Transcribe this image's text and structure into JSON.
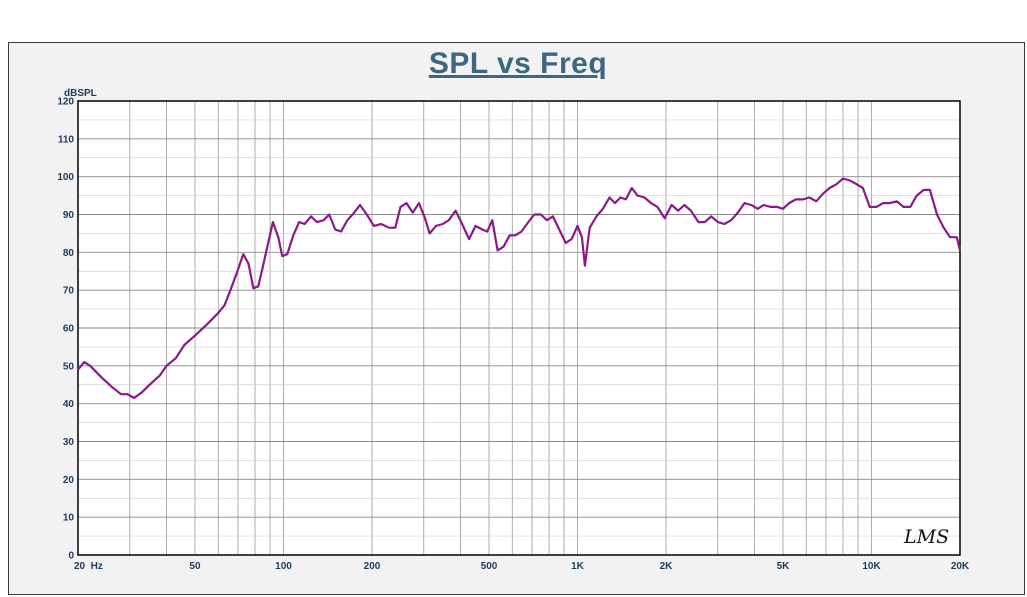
{
  "chart_data": {
    "type": "line",
    "title": "SPL vs Freq",
    "ylabel": "dBSPL",
    "xlabel": "",
    "x_scale": "log",
    "xlim": [
      20,
      20000
    ],
    "ylim": [
      0,
      120
    ],
    "grid": true,
    "y_ticks": [
      0,
      10,
      20,
      30,
      40,
      50,
      60,
      70,
      80,
      90,
      100,
      110,
      120
    ],
    "x_tick_labels": [
      {
        "value": 20,
        "label": "20  Hz"
      },
      {
        "value": 50,
        "label": "50"
      },
      {
        "value": 100,
        "label": "100"
      },
      {
        "value": 200,
        "label": "200"
      },
      {
        "value": 500,
        "label": "500"
      },
      {
        "value": 1000,
        "label": "1K"
      },
      {
        "value": 2000,
        "label": "2K"
      },
      {
        "value": 5000,
        "label": "5K"
      },
      {
        "value": 10000,
        "label": "10K"
      },
      {
        "value": 20000,
        "label": "20K"
      }
    ],
    "series": [
      {
        "color": "#8b1a89",
        "points": [
          [
            20,
            49
          ],
          [
            21,
            51
          ],
          [
            22,
            50
          ],
          [
            24,
            47
          ],
          [
            26,
            44.5
          ],
          [
            28,
            42.5
          ],
          [
            29.5,
            42.5
          ],
          [
            31,
            41.5
          ],
          [
            33,
            43
          ],
          [
            35,
            45
          ],
          [
            38,
            47.5
          ],
          [
            40,
            50
          ],
          [
            43,
            52
          ],
          [
            46,
            55.5
          ],
          [
            50,
            58
          ],
          [
            55,
            61
          ],
          [
            60,
            64
          ],
          [
            63,
            66
          ],
          [
            66,
            70
          ],
          [
            69,
            74
          ],
          [
            73,
            79.5
          ],
          [
            76,
            77
          ],
          [
            79,
            70.5
          ],
          [
            82,
            71
          ],
          [
            85,
            76
          ],
          [
            89,
            83
          ],
          [
            92,
            88
          ],
          [
            96,
            84
          ],
          [
            99,
            79
          ],
          [
            103,
            79.5
          ],
          [
            108,
            84.5
          ],
          [
            113,
            88
          ],
          [
            118,
            87.5
          ],
          [
            124,
            89.5
          ],
          [
            130,
            88
          ],
          [
            137,
            88.5
          ],
          [
            143,
            90
          ],
          [
            150,
            86
          ],
          [
            157,
            85.5
          ],
          [
            165,
            88.5
          ],
          [
            174,
            90.5
          ],
          [
            182,
            92.5
          ],
          [
            192,
            90
          ],
          [
            203,
            87
          ],
          [
            215,
            87.5
          ],
          [
            228,
            86.5
          ],
          [
            240,
            86.5
          ],
          [
            250,
            92
          ],
          [
            262,
            93
          ],
          [
            275,
            90.5
          ],
          [
            289,
            93
          ],
          [
            303,
            89
          ],
          [
            314,
            85
          ],
          [
            330,
            87
          ],
          [
            348,
            87.5
          ],
          [
            365,
            88.5
          ],
          [
            385,
            91
          ],
          [
            405,
            87.5
          ],
          [
            428,
            83.5
          ],
          [
            450,
            87
          ],
          [
            475,
            86
          ],
          [
            493,
            85.5
          ],
          [
            513,
            88.5
          ],
          [
            535,
            80.5
          ],
          [
            560,
            81.5
          ],
          [
            588,
            84.5
          ],
          [
            615,
            84.5
          ],
          [
            645,
            85.5
          ],
          [
            680,
            88
          ],
          [
            713,
            90
          ],
          [
            750,
            90
          ],
          [
            787,
            88.5
          ],
          [
            825,
            89.5
          ],
          [
            867,
            86
          ],
          [
            912,
            82.5
          ],
          [
            955,
            83.5
          ],
          [
            1000,
            87
          ],
          [
            1035,
            84
          ],
          [
            1060,
            76.5
          ],
          [
            1100,
            86.5
          ],
          [
            1160,
            89.5
          ],
          [
            1220,
            91.5
          ],
          [
            1285,
            94.5
          ],
          [
            1340,
            93
          ],
          [
            1400,
            94.5
          ],
          [
            1460,
            94
          ],
          [
            1530,
            97
          ],
          [
            1600,
            95
          ],
          [
            1690,
            94.5
          ],
          [
            1780,
            93
          ],
          [
            1870,
            92
          ],
          [
            1980,
            89
          ],
          [
            2090,
            92.5
          ],
          [
            2200,
            91
          ],
          [
            2310,
            92.5
          ],
          [
            2430,
            91
          ],
          [
            2580,
            88
          ],
          [
            2710,
            88
          ],
          [
            2850,
            89.5
          ],
          [
            3000,
            88
          ],
          [
            3160,
            87.5
          ],
          [
            3330,
            88.5
          ],
          [
            3510,
            90.5
          ],
          [
            3700,
            93
          ],
          [
            3900,
            92.5
          ],
          [
            4100,
            91.5
          ],
          [
            4300,
            92.5
          ],
          [
            4530,
            92
          ],
          [
            4780,
            92
          ],
          [
            5000,
            91.5
          ],
          [
            5250,
            93
          ],
          [
            5530,
            94
          ],
          [
            5840,
            94
          ],
          [
            6150,
            94.5
          ],
          [
            6490,
            93.5
          ],
          [
            6840,
            95.5
          ],
          [
            7200,
            97
          ],
          [
            7600,
            98
          ],
          [
            8000,
            99.5
          ],
          [
            8450,
            99
          ],
          [
            8900,
            98
          ],
          [
            9350,
            97
          ],
          [
            9860,
            92
          ],
          [
            10400,
            92
          ],
          [
            10950,
            93
          ],
          [
            11550,
            93
          ],
          [
            12200,
            93.5
          ],
          [
            12850,
            92
          ],
          [
            13550,
            92
          ],
          [
            14250,
            95
          ],
          [
            15050,
            96.5
          ],
          [
            15800,
            96.5
          ],
          [
            16700,
            90
          ],
          [
            17600,
            86.5
          ],
          [
            18500,
            84
          ],
          [
            19500,
            84
          ],
          [
            20000,
            80.5
          ]
        ]
      }
    ]
  },
  "watermark": {
    "text": "LMS"
  }
}
